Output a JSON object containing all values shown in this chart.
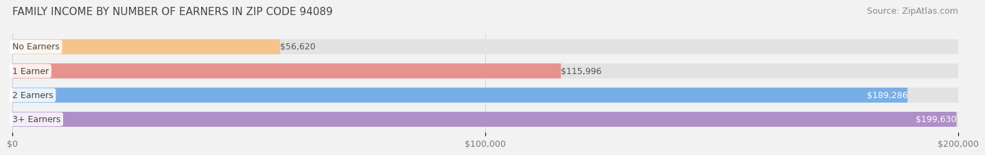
{
  "title": "FAMILY INCOME BY NUMBER OF EARNERS IN ZIP CODE 94089",
  "source": "Source: ZipAtlas.com",
  "categories": [
    "No Earners",
    "1 Earner",
    "2 Earners",
    "3+ Earners"
  ],
  "values": [
    56620,
    115996,
    189286,
    199630
  ],
  "bar_colors": [
    "#f5c48a",
    "#e8928e",
    "#78aee8",
    "#b08ec8"
  ],
  "value_labels": [
    "$56,620",
    "$115,996",
    "$189,286",
    "$199,630"
  ],
  "value_label_inside": [
    false,
    false,
    true,
    true
  ],
  "xlim": [
    0,
    200000
  ],
  "xtick_values": [
    0,
    100000,
    200000
  ],
  "xtick_labels": [
    "$0",
    "$100,000",
    "$200,000"
  ],
  "background_color": "#f2f2f2",
  "bar_bg_color": "#e2e2e2",
  "title_fontsize": 11,
  "source_fontsize": 9,
  "label_fontsize": 9,
  "value_fontsize": 9,
  "tick_fontsize": 9,
  "bar_height": 0.62,
  "fig_width": 14.06,
  "fig_height": 2.33
}
